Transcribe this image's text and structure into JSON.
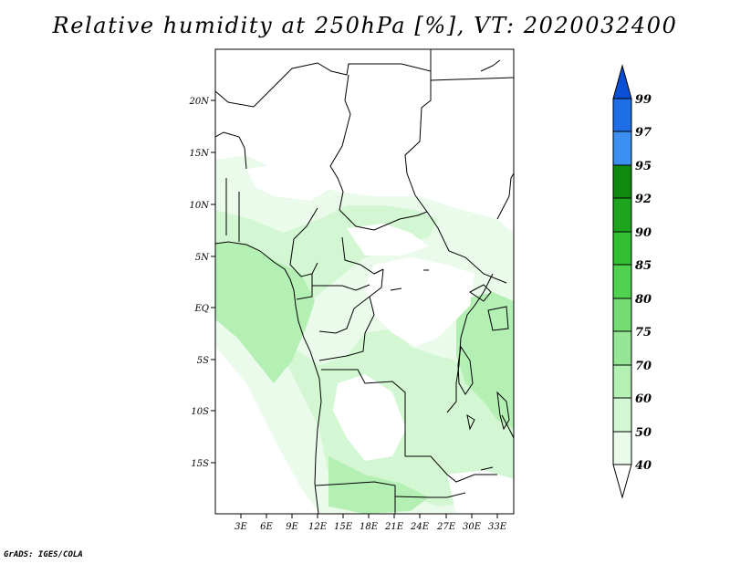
{
  "title": "Relative humidity at 250hPa [%], VT: 2020032400",
  "credit": "GrADS: IGES/COLA",
  "map": {
    "lon_ticks": [
      "3E",
      "6E",
      "9E",
      "12E",
      "15E",
      "18E",
      "21E",
      "24E",
      "27E",
      "30E",
      "33E"
    ],
    "lat_ticks": [
      "20N",
      "15N",
      "10N",
      "5N",
      "EQ",
      "5S",
      "10S",
      "15S"
    ]
  },
  "colorbar": {
    "levels": [
      "99",
      "97",
      "95",
      "92",
      "90",
      "85",
      "80",
      "75",
      "70",
      "60",
      "50",
      "40"
    ],
    "colors": [
      "#0a4fd4",
      "#1e6ee8",
      "#3a8ff0",
      "#0f8a0f",
      "#1ea51e",
      "#32c032",
      "#4fd24f",
      "#73dc73",
      "#96e696",
      "#b4efb4",
      "#d2f7d2",
      "#ebfbeb",
      "#ffffff"
    ]
  },
  "legend_colors": {
    "land_light": "#ebfbeb",
    "land_mid": "#d2f7d2",
    "land_strong": "#b4efb4",
    "land_stronger": "#96e696"
  }
}
